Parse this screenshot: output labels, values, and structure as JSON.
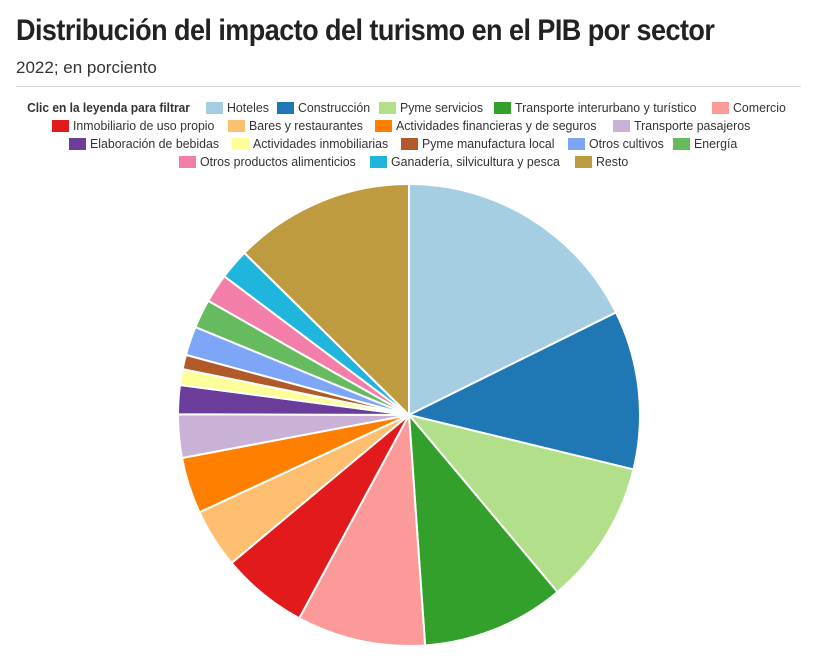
{
  "title": "Distribución del impacto del turismo en el PIB por sector",
  "subtitle": "2022; en porciento",
  "legend_title": "Clic en la leyenda para filtrar",
  "chart_data": {
    "type": "pie",
    "title": "Distribución del impacto del turismo en el PIB por sector",
    "subtitle": "2022; en porciento",
    "legend_placement": "top",
    "slices": [
      {
        "label": "Hoteles",
        "value": 17.5,
        "color": "#a6cee3"
      },
      {
        "label": "Construcción",
        "value": 11.0,
        "color": "#1f78b4"
      },
      {
        "label": "Pyme servicios",
        "value": 10.0,
        "color": "#b2df8a"
      },
      {
        "label": "Transporte interurbano y turístico",
        "value": 9.9,
        "color": "#33a02c"
      },
      {
        "label": "Comercio",
        "value": 8.9,
        "color": "#fb9a99"
      },
      {
        "label": "Inmobiliario de uso propio",
        "value": 6.0,
        "color": "#e31a1c"
      },
      {
        "label": "Bares y restaurantes",
        "value": 4.1,
        "color": "#fdbf6f"
      },
      {
        "label": "Actividades financieras y de seguros",
        "value": 3.9,
        "color": "#ff7f00"
      },
      {
        "label": "Transporte pasajeros",
        "value": 3.0,
        "color": "#cab2d6"
      },
      {
        "label": "Elaboración de bebidas",
        "value": 2.0,
        "color": "#6a3d9a"
      },
      {
        "label": "Actividades inmobiliarias",
        "value": 1.1,
        "color": "#ffff99"
      },
      {
        "label": "Pyme manufactura local",
        "value": 1.0,
        "color": "#b15928"
      },
      {
        "label": "Otros cultivos",
        "value": 2.0,
        "color": "#7ea6f6"
      },
      {
        "label": "Energía",
        "value": 2.0,
        "color": "#66bb5e"
      },
      {
        "label": "Otros productos alimenticios",
        "value": 2.0,
        "color": "#f27ea9"
      },
      {
        "label": "Ganadería, silvicultura y pesca",
        "value": 2.1,
        "color": "#1fb5dc"
      },
      {
        "label": "Resto",
        "value": 12.5,
        "color": "#bf9b3f"
      }
    ]
  }
}
